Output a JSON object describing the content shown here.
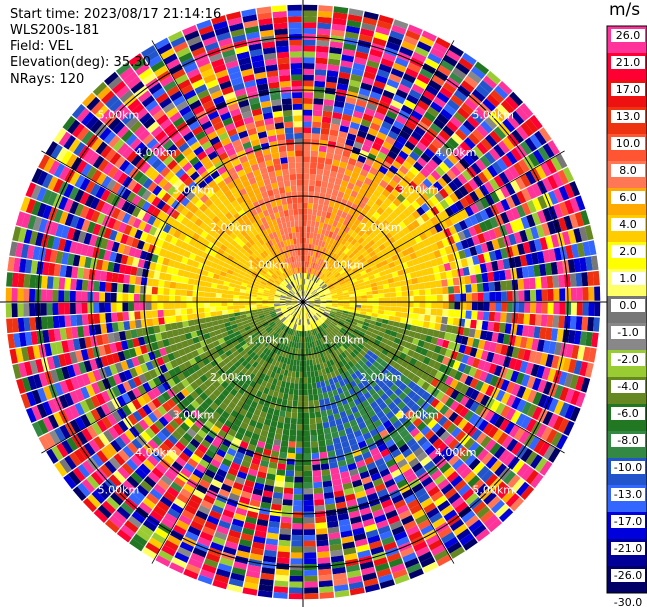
{
  "info": {
    "start_time": "Start time: 2023/08/17 21:14:16",
    "instrument": "WLS200s-181",
    "field": "Field: VEL",
    "elevation": "Elevation(deg): 35.30",
    "nrays": "NRays: 120"
  },
  "colorbar": {
    "unit": "m/s",
    "ticks": [
      "26.0",
      "21.0",
      "17.0",
      "13.0",
      "10.0",
      "8.0",
      "6.0",
      "4.0",
      "2.0",
      "1.0",
      "0.0",
      "-1.0",
      "-2.0",
      "-4.0",
      "-6.0",
      "-8.0",
      "-10.0",
      "-13.0",
      "-17.0",
      "-21.0",
      "-26.0",
      "-30.0"
    ],
    "colors": [
      "#ff3399",
      "#ff0033",
      "#ee1111",
      "#ee3311",
      "#ff5533",
      "#ff7755",
      "#ffaa00",
      "#ffcc00",
      "#ffff00",
      "#ffff66",
      "#777777",
      "#888888",
      "#99cc33",
      "#668822",
      "#227722",
      "#338844",
      "#2255cc",
      "#3366ff",
      "#0000dd",
      "#000099",
      "#000066"
    ]
  },
  "chart_data": {
    "type": "heatmap",
    "title": "",
    "field": "VEL",
    "units": "m/s",
    "elevation_deg": 35.3,
    "n_rays": 120,
    "range_rings_km": [
      1.0,
      2.0,
      3.0,
      4.0,
      5.0
    ],
    "ring_labels": [
      "1.00km",
      "2.00km",
      "3.00km",
      "4.00km",
      "5.00km"
    ],
    "max_range_km": 5.7,
    "colorscale_ticks": [
      26.0,
      21.0,
      17.0,
      13.0,
      10.0,
      8.0,
      6.0,
      4.0,
      2.0,
      1.0,
      0.0,
      -1.0,
      -2.0,
      -4.0,
      -6.0,
      -8.0,
      -10.0,
      -13.0,
      -17.0,
      -21.0,
      -26.0,
      -30.0
    ],
    "vmin": -30.0,
    "vmax": 30.0,
    "pattern": {
      "north_sector_mean_ms": 8.0,
      "north_sector_halfwidth_deg": 30,
      "east_west_mean_ms": 2.0,
      "south_sector_mean_ms": -5.0,
      "southeast_patch_ms": -10.0,
      "coherent_range_km": 3.0,
      "noise_beyond_km": 3.0
    }
  }
}
